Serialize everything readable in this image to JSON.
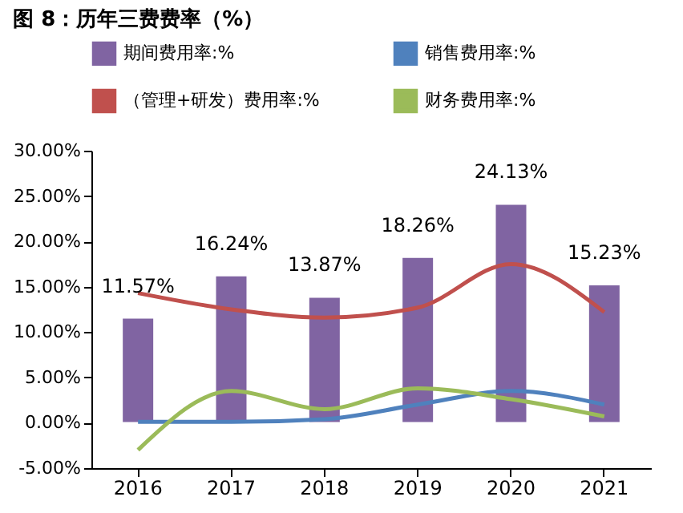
{
  "chart_data": {
    "type": "bar",
    "title": "图 8：历年三费费率（%）",
    "categories": [
      "2016",
      "2017",
      "2018",
      "2019",
      "2020",
      "2021"
    ],
    "series": [
      {
        "name": "期间费用率:%",
        "color": "#8064a2",
        "values": [
          11.57,
          16.24,
          13.87,
          18.26,
          24.13,
          15.23
        ],
        "value_labels": [
          "11.57%",
          "16.24%",
          "13.87%",
          "18.26%",
          "24.13%",
          "15.23%"
        ]
      },
      {
        "name": "销售费用率:%",
        "type": "line",
        "color": "#4f81bd",
        "values": [
          0.1,
          0.1,
          0.4,
          2.0,
          3.5,
          2.0
        ]
      },
      {
        "name": "（管理+研发）费用率:%",
        "type": "line",
        "color": "#c0504d",
        "values": [
          14.3,
          12.5,
          11.6,
          12.7,
          17.5,
          12.2
        ]
      },
      {
        "name": "财务费用率:%",
        "type": "line",
        "color": "#9bbb59",
        "values": [
          -3.0,
          3.5,
          1.5,
          3.8,
          2.6,
          0.7
        ]
      }
    ],
    "ylim": [
      -5,
      30
    ],
    "yticks": [
      {
        "value": -5,
        "label": "-5.00%"
      },
      {
        "value": 0,
        "label": "0.00%"
      },
      {
        "value": 5,
        "label": "5.00%"
      },
      {
        "value": 10,
        "label": "10.00%"
      },
      {
        "value": 15,
        "label": "15.00%"
      },
      {
        "value": 20,
        "label": "20.00%"
      },
      {
        "value": 25,
        "label": "25.00%"
      },
      {
        "value": 30,
        "label": "30.00%"
      }
    ],
    "legend": "top",
    "marker": "none",
    "line_style": "solid",
    "grid": false
  }
}
